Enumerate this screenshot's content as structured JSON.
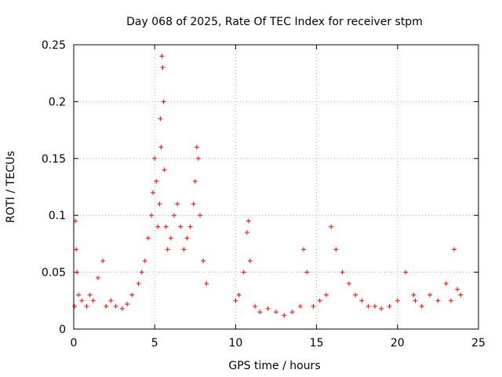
{
  "chart_data": {
    "type": "scatter",
    "title": "Day 068 of 2025, Rate Of TEC Index for receiver stpm",
    "xlabel": "GPS time / hours",
    "ylabel": "ROTI / TECUs",
    "xlim": [
      0,
      25
    ],
    "ylim": [
      0,
      0.25
    ],
    "xticks": [
      "0",
      "5",
      "10",
      "15",
      "20",
      "25"
    ],
    "yticks": [
      "0",
      "0.05",
      "0.1",
      "0.15",
      "0.2",
      "0.25"
    ],
    "grid": true,
    "marker": "+",
    "series_color": "#ff0000",
    "series": [
      {
        "name": "ROTI",
        "x": [
          0.05,
          0.1,
          0.15,
          0.2,
          0.3,
          0.5,
          0.8,
          1.0,
          1.2,
          1.5,
          1.8,
          2.0,
          2.3,
          2.6,
          3.0,
          3.3,
          3.6,
          4.0,
          4.2,
          4.4,
          4.6,
          4.8,
          4.9,
          5.0,
          5.1,
          5.2,
          5.3,
          5.35,
          5.4,
          5.45,
          5.5,
          5.55,
          5.6,
          5.7,
          5.8,
          6.0,
          6.2,
          6.4,
          6.6,
          6.8,
          7.0,
          7.2,
          7.4,
          7.5,
          7.6,
          7.7,
          7.8,
          8.0,
          8.2,
          10.0,
          10.2,
          10.5,
          10.7,
          10.8,
          10.9,
          11.2,
          11.5,
          12.0,
          12.5,
          13.0,
          13.5,
          14.0,
          14.2,
          14.4,
          14.8,
          15.2,
          15.6,
          15.9,
          16.2,
          16.6,
          17.0,
          17.4,
          17.8,
          18.2,
          18.6,
          19.0,
          19.5,
          20.0,
          20.5,
          21.0,
          21.1,
          21.5,
          22.0,
          22.5,
          23.0,
          23.3,
          23.5,
          23.7,
          23.9
        ],
        "y": [
          0.02,
          0.095,
          0.07,
          0.05,
          0.03,
          0.025,
          0.02,
          0.03,
          0.025,
          0.045,
          0.06,
          0.02,
          0.025,
          0.02,
          0.018,
          0.022,
          0.03,
          0.04,
          0.05,
          0.06,
          0.08,
          0.1,
          0.12,
          0.15,
          0.13,
          0.09,
          0.11,
          0.185,
          0.16,
          0.24,
          0.23,
          0.2,
          0.14,
          0.09,
          0.07,
          0.08,
          0.1,
          0.11,
          0.09,
          0.07,
          0.08,
          0.09,
          0.11,
          0.13,
          0.16,
          0.15,
          0.1,
          0.06,
          0.04,
          0.025,
          0.03,
          0.05,
          0.085,
          0.095,
          0.06,
          0.02,
          0.015,
          0.018,
          0.015,
          0.012,
          0.015,
          0.02,
          0.07,
          0.05,
          0.02,
          0.025,
          0.03,
          0.09,
          0.07,
          0.05,
          0.04,
          0.03,
          0.025,
          0.02,
          0.02,
          0.018,
          0.02,
          0.025,
          0.05,
          0.03,
          0.025,
          0.02,
          0.03,
          0.025,
          0.04,
          0.025,
          0.07,
          0.035,
          0.03
        ]
      }
    ]
  }
}
